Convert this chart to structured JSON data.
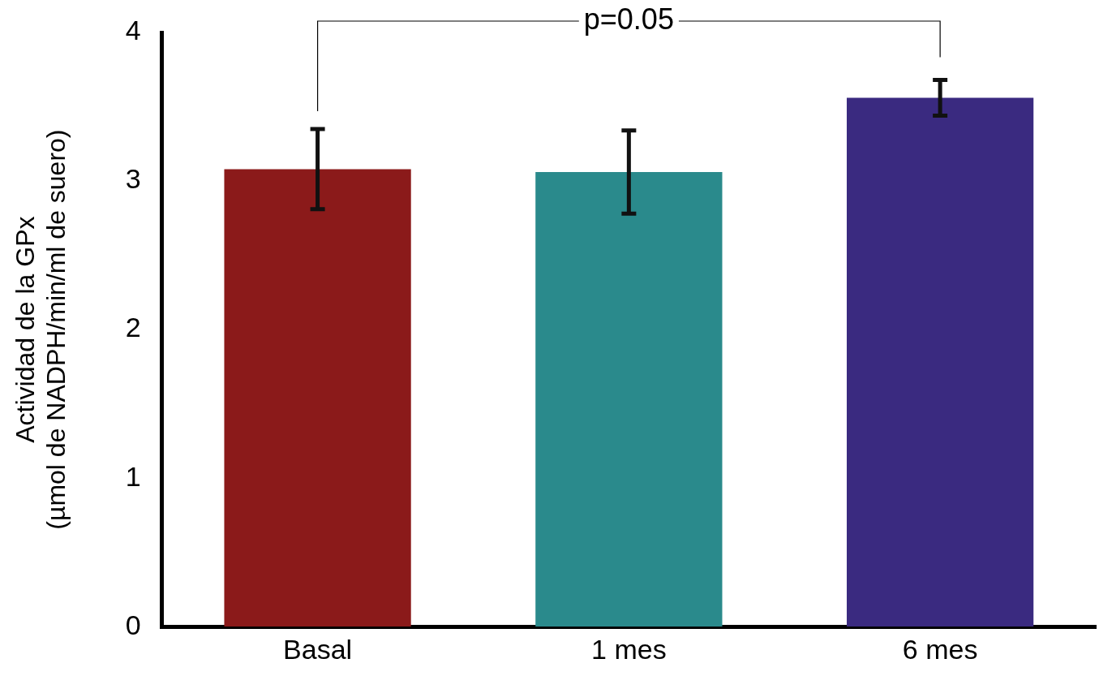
{
  "chart_data": {
    "type": "bar",
    "ylabel": "Actividad de la GPx\n(µmol de NADPH/min/ml de suero)",
    "categories": [
      "Basal",
      "1 mes",
      "6 mes"
    ],
    "values": [
      3.08,
      3.06,
      3.56
    ],
    "errors": [
      0.27,
      0.28,
      0.12
    ],
    "colors": [
      "#8b1a1a",
      "#2a8a8c",
      "#3a2a80"
    ],
    "ylim": [
      0,
      4
    ],
    "yticks": [
      0,
      1,
      2,
      3,
      4
    ],
    "grid": false,
    "legend": false,
    "annotations": [
      "p=0.05"
    ]
  }
}
